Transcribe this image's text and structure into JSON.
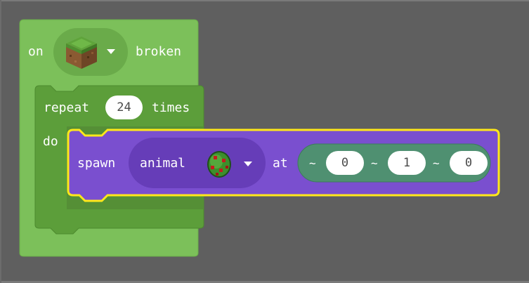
{
  "event_block": {
    "prefix": "on",
    "dropdown_icon": "grass-block-icon",
    "suffix": "broken",
    "color": "#7cc05a"
  },
  "repeat_block": {
    "label": "repeat",
    "count": "24",
    "times_label": "times",
    "do_label": "do",
    "color": "#5c9e3a"
  },
  "spawn_block": {
    "label": "spawn",
    "mob_dropdown": {
      "label": "animal",
      "icon": "spawn-egg-icon"
    },
    "at_label": "at",
    "position": {
      "x": {
        "prefix": "~",
        "value": "0"
      },
      "y": {
        "prefix": "~",
        "value": "1"
      },
      "z": {
        "prefix": "~",
        "value": "0"
      }
    },
    "color": "#7a4fcf",
    "highlight_color": "#ffe81a"
  }
}
